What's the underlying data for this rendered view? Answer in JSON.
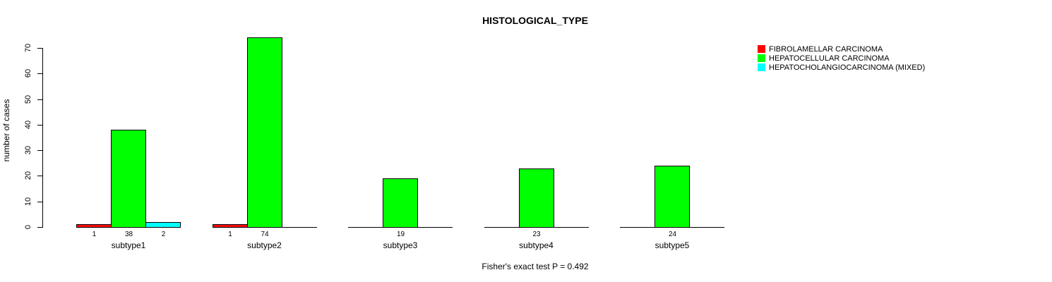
{
  "title": "HISTOLOGICAL_TYPE",
  "annotation": "Fisher's exact test P = 0.492",
  "colors": {
    "fibrolamellar": "#ff0000",
    "hepatocellular": "#00ff00",
    "mixed": "#00ffff",
    "text": "#000000",
    "background": "#ffffff"
  },
  "chart_data": {
    "type": "bar",
    "title": "HISTOLOGICAL_TYPE",
    "xlabel": "",
    "ylabel": "number of cases",
    "ylim": [
      0,
      70
    ],
    "yticks": [
      0,
      10,
      20,
      30,
      40,
      50,
      60,
      70
    ],
    "grid": false,
    "legend_position": "top-right",
    "categories": [
      "subtype1",
      "subtype2",
      "subtype3",
      "subtype4",
      "subtype5"
    ],
    "series": [
      {
        "name": "FIBROLAMELLAR CARCINOMA",
        "color": "#ff0000",
        "values": [
          1,
          1,
          0,
          0,
          0
        ]
      },
      {
        "name": "HEPATOCELLULAR CARCINOMA",
        "color": "#00ff00",
        "values": [
          38,
          74,
          19,
          23,
          24
        ]
      },
      {
        "name": "HEPATOCHOLANGIOCARCINOMA (MIXED)",
        "color": "#00ffff",
        "values": [
          2,
          0,
          0,
          0,
          0
        ]
      }
    ],
    "bar_count_labels": "shown under each nonzero bar",
    "annotation": "Fisher's exact test P = 0.492"
  }
}
